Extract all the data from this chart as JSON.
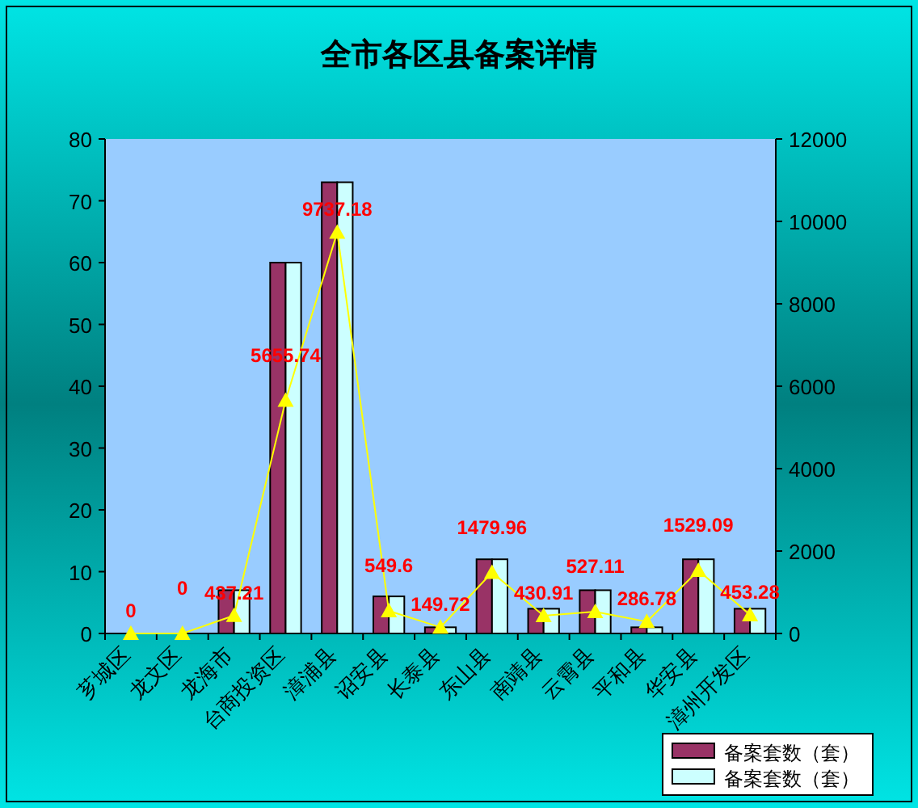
{
  "chart_data": {
    "type": "bar",
    "title": "全市各区县备案详情",
    "categories": [
      "芗城区",
      "龙文区",
      "龙海市",
      "台商投资区",
      "漳浦县",
      "诏安县",
      "长泰县",
      "东山县",
      "南靖县",
      "云霄县",
      "平和县",
      "华安县",
      "漳州开发区"
    ],
    "series": [
      {
        "name": "备案套数（套）",
        "color": "#993366",
        "values": [
          0,
          0,
          7,
          60,
          73,
          6,
          1,
          12,
          4,
          7,
          1,
          12,
          4
        ]
      },
      {
        "name": "备案套数（套）",
        "color": "#ccffff",
        "values": [
          0,
          0,
          7,
          60,
          73,
          6,
          1,
          12,
          4,
          7,
          1,
          12,
          4
        ]
      },
      {
        "type": "line",
        "axis": "y2",
        "color": "#ffff00",
        "values": [
          0,
          0,
          437.21,
          5655.74,
          9737.18,
          549.6,
          149.72,
          1479.96,
          430.91,
          527.11,
          286.78,
          1529.09,
          453.28
        ],
        "value_labels": [
          "0",
          "0",
          "437.21",
          "5655.74",
          "9737.18",
          "549.6",
          "149.72",
          "1479.96",
          "430.91",
          "527.11",
          "286.78",
          "1529.09",
          "453.28"
        ]
      }
    ],
    "marker": "triangle",
    "ylim": [
      0,
      80
    ],
    "yticks": [
      0,
      10,
      20,
      30,
      40,
      50,
      60,
      70,
      80
    ],
    "y2lim": [
      0,
      12000
    ],
    "y2ticks": [
      0,
      2000,
      4000,
      6000,
      8000,
      10000,
      12000
    ],
    "grid": false,
    "legend": "bottom right"
  }
}
